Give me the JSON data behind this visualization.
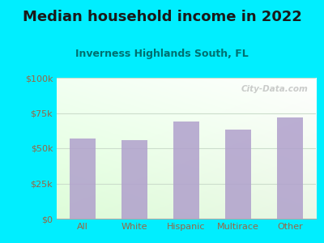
{
  "title": "Median household income in 2022",
  "subtitle": "Inverness Highlands South, FL",
  "categories": [
    "All",
    "White",
    "Hispanic",
    "Multirace",
    "Other"
  ],
  "values": [
    57000,
    56000,
    69000,
    63000,
    72000
  ],
  "bar_color": "#b0a0cc",
  "background_outer": "#00eeff",
  "title_color": "#1a1a1a",
  "subtitle_color": "#007070",
  "tick_label_color": "#996644",
  "watermark": "City-Data.com",
  "ylim": [
    0,
    100000
  ],
  "yticks": [
    0,
    25000,
    50000,
    75000,
    100000
  ],
  "ytick_labels": [
    "$0",
    "$25k",
    "$50k",
    "$75k",
    "$100k"
  ],
  "title_fontsize": 13,
  "subtitle_fontsize": 9,
  "tick_fontsize": 8,
  "xlabel_fontsize": 8,
  "grid_color": "#ccddcc"
}
